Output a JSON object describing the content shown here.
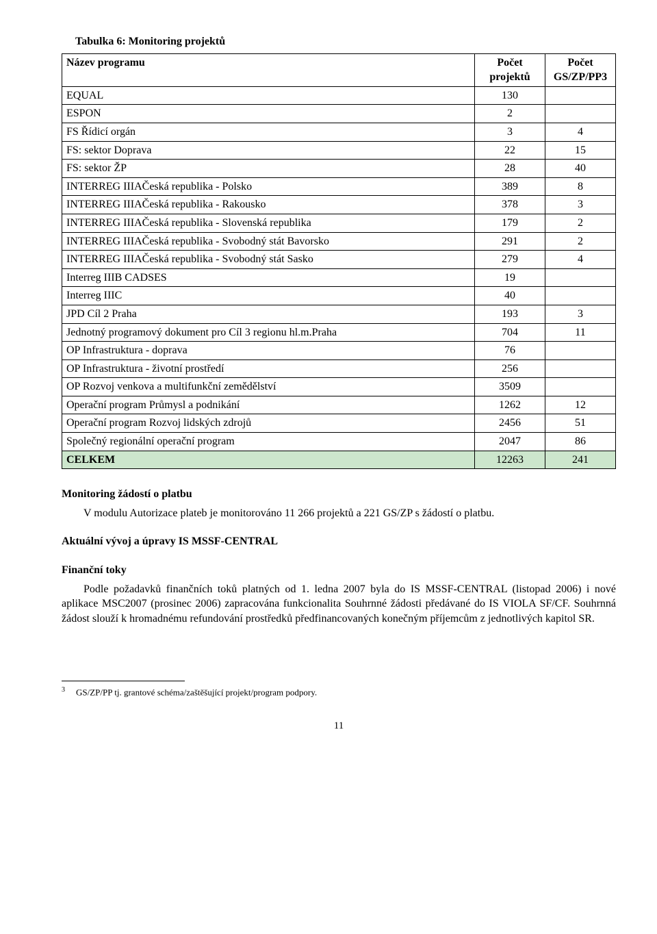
{
  "caption": "Tabulka 6: Monitoring projektů",
  "columns": {
    "c0": "Název programu",
    "c1": "Počet projektů",
    "c2": "Počet GS/ZP/PP3"
  },
  "rows": [
    {
      "name": "EQUAL",
      "v1": "130",
      "v2": ""
    },
    {
      "name": "ESPON",
      "v1": "2",
      "v2": ""
    },
    {
      "name": "FS Řídicí orgán",
      "v1": "3",
      "v2": "4"
    },
    {
      "name": "FS: sektor Doprava",
      "v1": "22",
      "v2": "15"
    },
    {
      "name": "FS: sektor ŽP",
      "v1": "28",
      "v2": "40"
    },
    {
      "name": "INTERREG IIIAČeská republika - Polsko",
      "v1": "389",
      "v2": "8"
    },
    {
      "name": "INTERREG IIIAČeská republika - Rakousko",
      "v1": "378",
      "v2": "3"
    },
    {
      "name": "INTERREG IIIAČeská republika - Slovenská republika",
      "v1": "179",
      "v2": "2"
    },
    {
      "name": "INTERREG IIIAČeská republika - Svobodný stát Bavorsko",
      "v1": "291",
      "v2": "2"
    },
    {
      "name": "INTERREG IIIAČeská republika - Svobodný stát Sasko",
      "v1": "279",
      "v2": "4"
    },
    {
      "name": "Interreg IIIB CADSES",
      "v1": "19",
      "v2": ""
    },
    {
      "name": "Interreg IIIC",
      "v1": "40",
      "v2": ""
    },
    {
      "name": "JPD Cíl 2 Praha",
      "v1": "193",
      "v2": "3"
    },
    {
      "name": "Jednotný programový dokument pro Cíl 3 regionu hl.m.Praha",
      "v1": "704",
      "v2": "11"
    },
    {
      "name": "OP Infrastruktura - doprava",
      "v1": "76",
      "v2": ""
    },
    {
      "name": "OP Infrastruktura - životní prostředí",
      "v1": "256",
      "v2": ""
    },
    {
      "name": "OP Rozvoj venkova a multifunkční zemědělství",
      "v1": "3509",
      "v2": ""
    },
    {
      "name": "Operační program Průmysl a podnikání",
      "v1": "1262",
      "v2": "12"
    },
    {
      "name": "Operační program Rozvoj lidských zdrojů",
      "v1": "2456",
      "v2": "51"
    },
    {
      "name": "Společný regionální operační program",
      "v1": "2047",
      "v2": "86"
    }
  ],
  "totalRow": {
    "name": "CELKEM",
    "v1": "12263",
    "v2": "241"
  },
  "sections": {
    "s1_title": "Monitoring žádostí o platbu",
    "s1_body": "V modulu Autorizace plateb je monitorováno 11 266 projektů a 221 GS/ZP s žádostí o platbu.",
    "s2_title": "Aktuální vývoj a úpravy IS MSSF-CENTRAL",
    "s3_title": "Finanční toky",
    "s3_body": "Podle požadavků finančních toků platných od 1. ledna 2007 byla do IS MSSF-CENTRAL (listopad 2006) i nové aplikace MSC2007 (prosinec 2006) zapracována funkcionalita Souhrnné žádosti předávané do IS VIOLA SF/CF. Souhrnná žádost slouží k hromadnému refundování prostředků předfinancovaných konečným příjemcům z jednotlivých kapitol SR."
  },
  "footnote": {
    "num": "3",
    "text": "GS/ZP/PP tj. grantové schéma/zaštěšující projekt/program podpory."
  },
  "pageNumber": "11"
}
